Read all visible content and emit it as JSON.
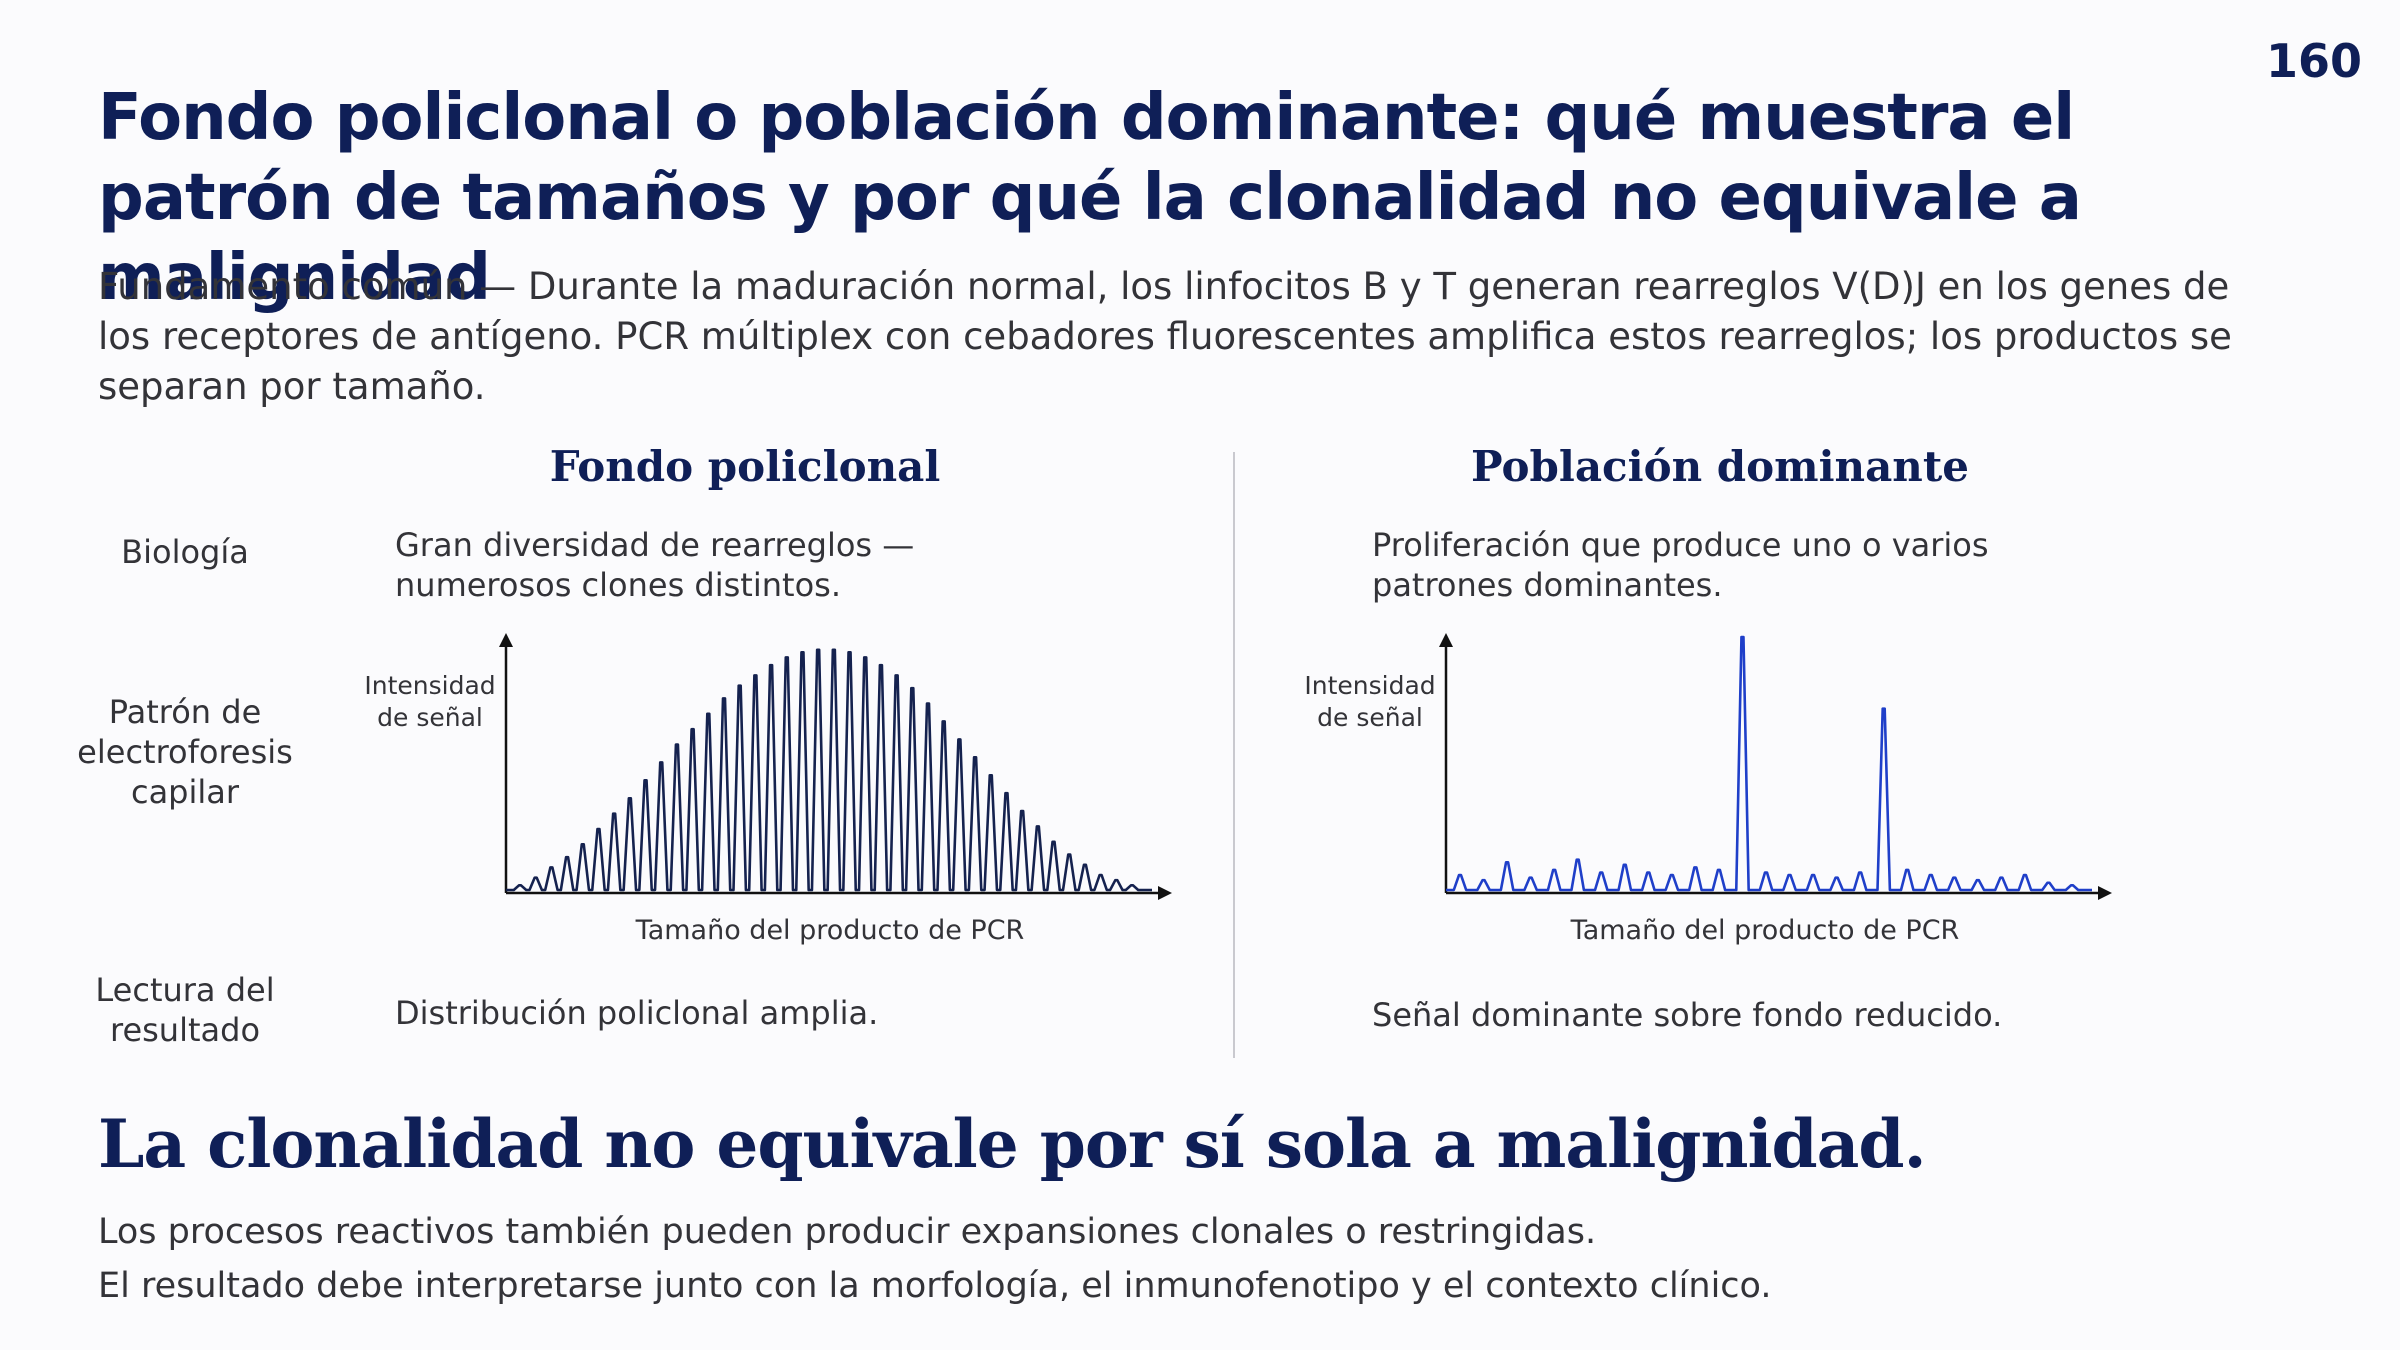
{
  "page_number": "160",
  "title": "Fondo policlonal o población dominante: qué muestra el patrón de tamaños y por qué la clonalidad no equivale a malignidad",
  "intro": "Fundamento común — Durante la maduración normal, los linfocitos B y T generan rearreglos V(D)J en los genes de los receptores de antígeno. PCR múltiplex con cebadores fluorescentes amplifica estos rearreglos; los productos se separan por tamaño.",
  "columns": {
    "left_title": "Fondo policlonal",
    "right_title": "Población dominante"
  },
  "rows": {
    "biology_label": "Biología",
    "pattern_label": "Patrón de electroforesis capilar",
    "readout_label": "Lectura del resultado"
  },
  "left": {
    "biology": "Gran diversidad de rearreglos — numerosos clones distintos.",
    "readout": "Distribución policlonal amplia."
  },
  "right": {
    "biology": "Proliferación que produce uno o varios patrones dominantes.",
    "readout": "Señal dominante sobre fondo reducido."
  },
  "chart_data": [
    {
      "type": "line",
      "ylabel": "Intensidad de señal",
      "xlabel": "Tamaño del producto de PCR",
      "color": "#15224f",
      "peaks": [
        0.03,
        0.06,
        0.1,
        0.14,
        0.19,
        0.25,
        0.31,
        0.37,
        0.44,
        0.51,
        0.58,
        0.64,
        0.7,
        0.76,
        0.81,
        0.85,
        0.89,
        0.92,
        0.94,
        0.95,
        0.95,
        0.94,
        0.92,
        0.89,
        0.85,
        0.8,
        0.74,
        0.67,
        0.6,
        0.53,
        0.46,
        0.39,
        0.32,
        0.26,
        0.2,
        0.15,
        0.11,
        0.07,
        0.05,
        0.03
      ]
    },
    {
      "type": "line",
      "ylabel": "Intensidad de señal",
      "xlabel": "Tamaño del producto de PCR",
      "color": "#1f3fc9",
      "peaks": [
        0.07,
        0.05,
        0.12,
        0.06,
        0.09,
        0.13,
        0.08,
        0.11,
        0.08,
        0.07,
        0.1,
        0.09,
        1.0,
        0.08,
        0.07,
        0.07,
        0.06,
        0.08,
        0.72,
        0.09,
        0.07,
        0.06,
        0.05,
        0.06,
        0.07,
        0.04,
        0.03
      ]
    }
  ],
  "conclusion": "La clonalidad no equivale por sí sola a malignidad.",
  "notes": [
    "Los procesos reactivos también pueden producir expansiones clonales o restringidas.",
    "El resultado debe interpretarse junto con la morfología, el inmunofenotipo y el contexto clínico."
  ]
}
